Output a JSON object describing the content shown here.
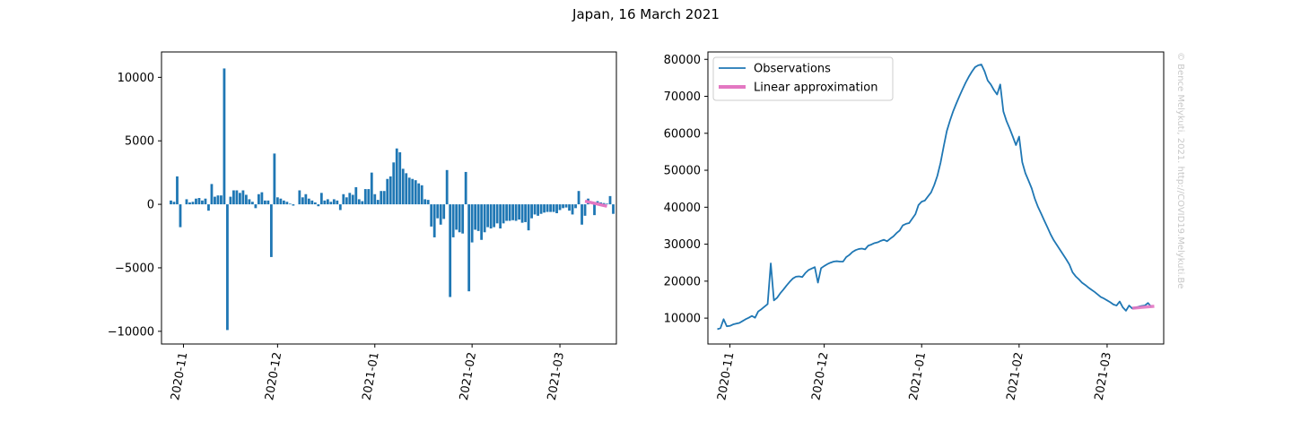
{
  "figure": {
    "title": "Japan, 16 March 2021",
    "watermark": "© Bence Melykuti, 2021. http://COVID19.Melykuti.Be"
  },
  "colors": {
    "bars": "#1f77b4",
    "observations": "#1f77b4",
    "linear": "#e377c2"
  },
  "chart_data": [
    {
      "type": "bar",
      "title": "",
      "xlabel": "",
      "ylabel": "",
      "x_start_date": "2020-10-28",
      "x_end_date": "2021-03-16",
      "xlim_dates": [
        "2020-10-25",
        "2021-03-19"
      ],
      "ylim": [
        -11000,
        12000
      ],
      "yticks": [
        10000,
        5000,
        0,
        -5000,
        -10000
      ],
      "ytick_labels": [
        "10000",
        "5000",
        "0",
        "−5000",
        "−10000"
      ],
      "xticks": [
        "2020-11-01",
        "2020-12-01",
        "2021-01-01",
        "2021-02-01",
        "2021-03-01"
      ],
      "xtick_labels": [
        "2020-11",
        "2020-12",
        "2021-01",
        "2021-02",
        "2021-03"
      ],
      "values": [
        300,
        200,
        2200,
        -1800,
        0,
        400,
        150,
        200,
        450,
        500,
        300,
        450,
        -500,
        1600,
        600,
        700,
        700,
        10700,
        -9900,
        600,
        1100,
        1100,
        900,
        1100,
        750,
        400,
        200,
        -300,
        800,
        950,
        300,
        300,
        -4150,
        4000,
        550,
        450,
        300,
        200,
        50,
        -100,
        0,
        1100,
        550,
        800,
        450,
        300,
        150,
        -150,
        900,
        300,
        400,
        200,
        400,
        300,
        -450,
        800,
        550,
        900,
        750,
        1350,
        400,
        250,
        1200,
        1200,
        2500,
        800,
        350,
        1050,
        1050,
        2000,
        2200,
        3300,
        4400,
        4100,
        2800,
        2450,
        2100,
        2000,
        1900,
        1650,
        1500,
        400,
        350,
        -1750,
        -2600,
        -1100,
        -1600,
        -1150,
        2700,
        -7300,
        -2600,
        -2000,
        -2200,
        -2300,
        2550,
        -6850,
        -3000,
        -2000,
        -2100,
        -2800,
        -2200,
        -1800,
        -1900,
        -1800,
        -1500,
        -1900,
        -1500,
        -1300,
        -1300,
        -1250,
        -1300,
        -1200,
        -1450,
        -1400,
        -2050,
        -1100,
        -800,
        -900,
        -750,
        -650,
        -600,
        -600,
        -600,
        -700,
        -450,
        -300,
        -250,
        -500,
        -800,
        -300,
        1050,
        -1600,
        -900,
        450,
        0,
        -850,
        250,
        150,
        100,
        50,
        650,
        -750
      ],
      "linear_approximation": {
        "start_date": "2021-03-09",
        "end_date": "2021-03-16",
        "y_start": 250,
        "y_end": -150
      }
    },
    {
      "type": "line",
      "title": "",
      "xlabel": "",
      "ylabel": "",
      "x_start_date": "2020-10-28",
      "x_end_date": "2021-03-16",
      "xlim_dates": [
        "2020-10-25",
        "2021-03-19"
      ],
      "ylim": [
        3000,
        82000
      ],
      "yticks": [
        80000,
        70000,
        60000,
        50000,
        40000,
        30000,
        20000,
        10000
      ],
      "ytick_labels": [
        "80000",
        "70000",
        "60000",
        "50000",
        "40000",
        "30000",
        "20000",
        "10000"
      ],
      "xticks": [
        "2020-11-01",
        "2020-12-01",
        "2021-01-01",
        "2021-02-01",
        "2021-03-01"
      ],
      "xtick_labels": [
        "2020-11",
        "2020-12",
        "2021-01",
        "2021-02",
        "2021-03"
      ],
      "legend": {
        "location": "upper-left",
        "entries": [
          "Observations",
          "Linear approximation"
        ]
      },
      "series": [
        {
          "name": "Observations",
          "values": [
            7000,
            7300,
            9700,
            7800,
            7900,
            8300,
            8500,
            8700,
            9200,
            9700,
            10100,
            10600,
            10100,
            11800,
            12400,
            13100,
            13800,
            24800,
            14800,
            15500,
            16700,
            17700,
            18800,
            19800,
            20700,
            21200,
            21300,
            21100,
            22200,
            23000,
            23400,
            23800,
            19600,
            23500,
            24100,
            24600,
            25000,
            25300,
            25400,
            25300,
            25300,
            26500,
            27100,
            27900,
            28400,
            28700,
            28800,
            28600,
            29600,
            29900,
            30300,
            30500,
            30900,
            31200,
            30800,
            31500,
            32100,
            33000,
            33700,
            35100,
            35500,
            35700,
            36900,
            38100,
            40600,
            41500,
            41800,
            42900,
            44000,
            46000,
            48500,
            52000,
            56400,
            60600,
            63400,
            65900,
            68000,
            70000,
            71900,
            73700,
            75300,
            76700,
            77900,
            78400,
            78600,
            76800,
            74300,
            73200,
            71700,
            70500,
            73200,
            65900,
            63300,
            61300,
            59100,
            56800,
            59100,
            52200,
            49200,
            47200,
            45100,
            42300,
            40100,
            38300,
            36400,
            34600,
            32700,
            31100,
            29800,
            28500,
            27200,
            25900,
            24500,
            22400,
            21300,
            20500,
            19600,
            19000,
            18300,
            17700,
            17100,
            16400,
            15700,
            15300,
            14800,
            14300,
            13700,
            13400,
            14500,
            12900,
            12000,
            13400,
            12600,
            12800,
            13100,
            13300,
            13400,
            14100,
            13100
          ]
        },
        {
          "name": "Linear approximation",
          "start_date": "2021-03-09",
          "end_date": "2021-03-16",
          "y_start": 12700,
          "y_end": 13200
        }
      ]
    }
  ]
}
